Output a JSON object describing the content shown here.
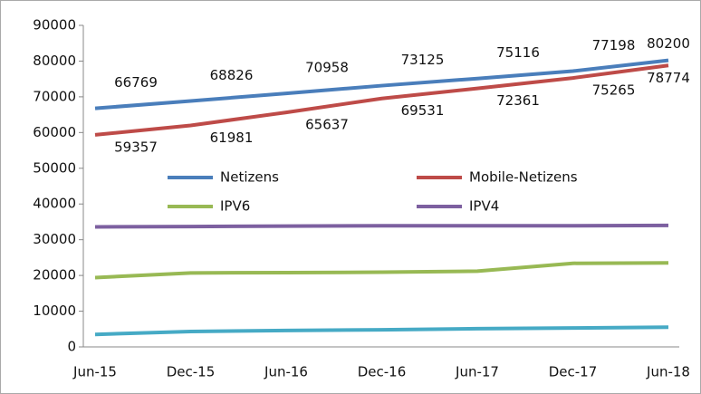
{
  "chart_data": {
    "type": "line",
    "categories": [
      "Jun-15",
      "Dec-15",
      "Jun-16",
      "Dec-16",
      "Jun-17",
      "Dec-17",
      "Jun-18"
    ],
    "series": [
      {
        "name": "Netizens",
        "color": "#4a7ebb",
        "values": [
          66769,
          68826,
          70958,
          73125,
          75116,
          77198,
          80200
        ]
      },
      {
        "name": "Mobile-Netizens",
        "color": "#be4b48",
        "values": [
          59357,
          61981,
          65637,
          69531,
          72361,
          75265,
          78774
        ]
      },
      {
        "name": "IPV6",
        "color": "#98b954",
        "values": [
          19400,
          20700,
          20800,
          20900,
          21200,
          23400,
          23500
        ]
      },
      {
        "name": "IPV4",
        "color": "#7d60a0",
        "values": [
          33600,
          33700,
          33800,
          33900,
          33900,
          33900,
          34000
        ]
      },
      {
        "color": "#46aac5",
        "values": [
          3500,
          4300,
          4600,
          4800,
          5100,
          5300,
          5500
        ]
      }
    ],
    "data_labels": [
      0,
      1
    ],
    "ylim": [
      0,
      90000
    ],
    "yticks": [
      0,
      10000,
      20000,
      30000,
      40000,
      50000,
      60000,
      70000,
      80000,
      90000
    ],
    "grid": false
  }
}
